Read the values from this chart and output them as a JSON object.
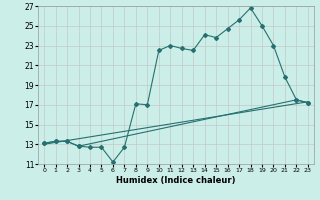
{
  "title": "",
  "xlabel": "Humidex (Indice chaleur)",
  "background_color": "#cceee8",
  "line_color": "#267070",
  "xlim": [
    -0.5,
    23.5
  ],
  "ylim": [
    11,
    27
  ],
  "xticks": [
    0,
    1,
    2,
    3,
    4,
    5,
    6,
    7,
    8,
    9,
    10,
    11,
    12,
    13,
    14,
    15,
    16,
    17,
    18,
    19,
    20,
    21,
    22,
    23
  ],
  "yticks": [
    11,
    13,
    15,
    17,
    19,
    21,
    23,
    25,
    27
  ],
  "line1_x": [
    0,
    1,
    2,
    3,
    4,
    5,
    6,
    7,
    8,
    9,
    10,
    11,
    12,
    13,
    14,
    15,
    16,
    17,
    18,
    19,
    20,
    21,
    22,
    23
  ],
  "line1_y": [
    13.1,
    13.3,
    13.3,
    12.8,
    12.7,
    12.7,
    11.2,
    12.7,
    17.1,
    17.0,
    22.5,
    23.0,
    22.7,
    22.5,
    24.1,
    23.8,
    24.7,
    25.6,
    26.8,
    25.0,
    23.0,
    19.8,
    17.5,
    17.2
  ],
  "line2_x": [
    0,
    1,
    2,
    3,
    22,
    23
  ],
  "line2_y": [
    13.1,
    13.3,
    13.3,
    12.8,
    17.5,
    17.2
  ],
  "line3_x": [
    0,
    23
  ],
  "line3_y": [
    13.0,
    17.3
  ]
}
